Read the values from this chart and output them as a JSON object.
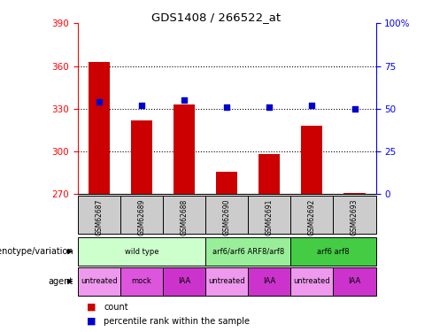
{
  "title": "GDS1408 / 266522_at",
  "samples": [
    "GSM62687",
    "GSM62689",
    "GSM62688",
    "GSM62690",
    "GSM62691",
    "GSM62692",
    "GSM62693"
  ],
  "count_values": [
    363,
    322,
    333,
    286,
    298,
    318,
    271
  ],
  "percentile_values": [
    54,
    52,
    55,
    51,
    51,
    52,
    50
  ],
  "ylim_left": [
    270,
    390
  ],
  "ylim_right": [
    0,
    100
  ],
  "yticks_left": [
    270,
    300,
    330,
    360,
    390
  ],
  "yticks_right": [
    0,
    25,
    50,
    75,
    100
  ],
  "yticklabels_right": [
    "0",
    "25",
    "50",
    "75",
    "100%"
  ],
  "bar_color": "#cc0000",
  "marker_color": "#0000cc",
  "genotype_labels": [
    {
      "text": "wild type",
      "span": [
        0,
        3
      ],
      "color": "#ccffcc"
    },
    {
      "text": "arf6/arf6 ARF8/arf8",
      "span": [
        3,
        5
      ],
      "color": "#99ee99"
    },
    {
      "text": "arf6 arf8",
      "span": [
        5,
        7
      ],
      "color": "#44cc44"
    }
  ],
  "agent_labels": [
    {
      "text": "untreated",
      "span": [
        0,
        1
      ],
      "color": "#ee99ee"
    },
    {
      "text": "mock",
      "span": [
        1,
        2
      ],
      "color": "#dd55dd"
    },
    {
      "text": "IAA",
      "span": [
        2,
        3
      ],
      "color": "#cc33cc"
    },
    {
      "text": "untreated",
      "span": [
        3,
        4
      ],
      "color": "#ee99ee"
    },
    {
      "text": "IAA",
      "span": [
        4,
        5
      ],
      "color": "#cc33cc"
    },
    {
      "text": "untreated",
      "span": [
        5,
        6
      ],
      "color": "#ee99ee"
    },
    {
      "text": "IAA",
      "span": [
        6,
        7
      ],
      "color": "#cc33cc"
    }
  ],
  "legend_count_label": "count",
  "legend_percentile_label": "percentile rank within the sample",
  "xlabel_genotype": "genotype/variation",
  "xlabel_agent": "agent",
  "bar_width": 0.5,
  "sample_box_color": "#cccccc",
  "dotted_yticks": [
    300,
    330,
    360
  ]
}
